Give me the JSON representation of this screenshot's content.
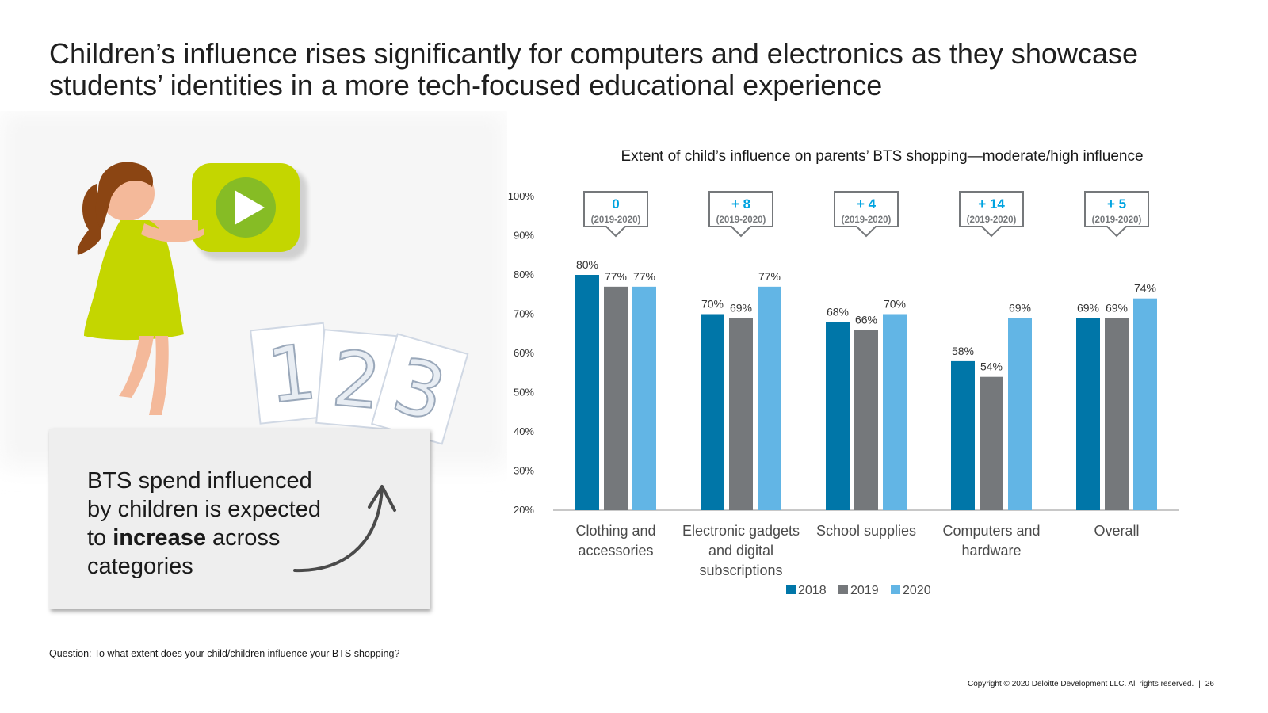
{
  "title": {
    "line1": "Children’s influence rises significantly for computers and electronics as they showcase",
    "line2": "students’ identities in a more tech-focused educational experience"
  },
  "callout": {
    "line1": "BTS spend influenced",
    "line2": "by children is expected",
    "line3_pre": "to ",
    "line3_bold": "increase",
    "line3_post": " across",
    "line4": "categories"
  },
  "illustration": {
    "cards": [
      "1",
      "2",
      "3"
    ]
  },
  "question": "Question: To what extent does your child/children influence your BTS shopping?",
  "footer": {
    "copyright": "Copyright © 2020 Deloitte Development LLC. All rights reserved.",
    "separator": "|",
    "page_number": "26"
  },
  "colors": {
    "s2018": "#0076a8",
    "s2019": "#75787b",
    "s2020": "#62b5e5",
    "change_text": "#00a3e0",
    "green": "#c4d600",
    "green_dark": "#86bc25"
  },
  "chart_data": {
    "type": "bar",
    "title": "Extent of child’s influence on parents’ BTS shopping—moderate/high influence",
    "categories": [
      [
        "Clothing and",
        "accessories"
      ],
      [
        "Electronic gadgets",
        "and digital",
        "subscriptions"
      ],
      [
        "School supplies"
      ],
      [
        "Computers and",
        "hardware"
      ],
      [
        "Overall"
      ]
    ],
    "series": [
      {
        "name": "2018",
        "values": [
          80,
          70,
          68,
          58,
          69
        ]
      },
      {
        "name": "2019",
        "values": [
          77,
          69,
          66,
          54,
          69
        ]
      },
      {
        "name": "2020",
        "values": [
          77,
          77,
          70,
          69,
          74
        ]
      }
    ],
    "value_labels": [
      [
        "80%",
        "77%",
        "77%"
      ],
      [
        "70%",
        "69%",
        "77%"
      ],
      [
        "68%",
        "66%",
        "70%"
      ],
      [
        "58%",
        "54%",
        "69%"
      ],
      [
        "69%",
        "69%",
        "74%"
      ]
    ],
    "changes": [
      {
        "value": "0",
        "period": "(2019-2020)"
      },
      {
        "value": "+ 8",
        "period": "(2019-2020)"
      },
      {
        "value": "+ 4",
        "period": "(2019-2020)"
      },
      {
        "value": "+ 14",
        "period": "(2019-2020)"
      },
      {
        "value": "+ 5",
        "period": "(2019-2020)"
      }
    ],
    "yticks": [
      "100%",
      "90%",
      "80%",
      "70%",
      "60%",
      "50%",
      "40%",
      "30%",
      "20%"
    ],
    "ylim": [
      20,
      100
    ],
    "legend": [
      "2018",
      "2019",
      "2020"
    ],
    "legend_position": "bottom",
    "xlabel": "",
    "ylabel": ""
  }
}
